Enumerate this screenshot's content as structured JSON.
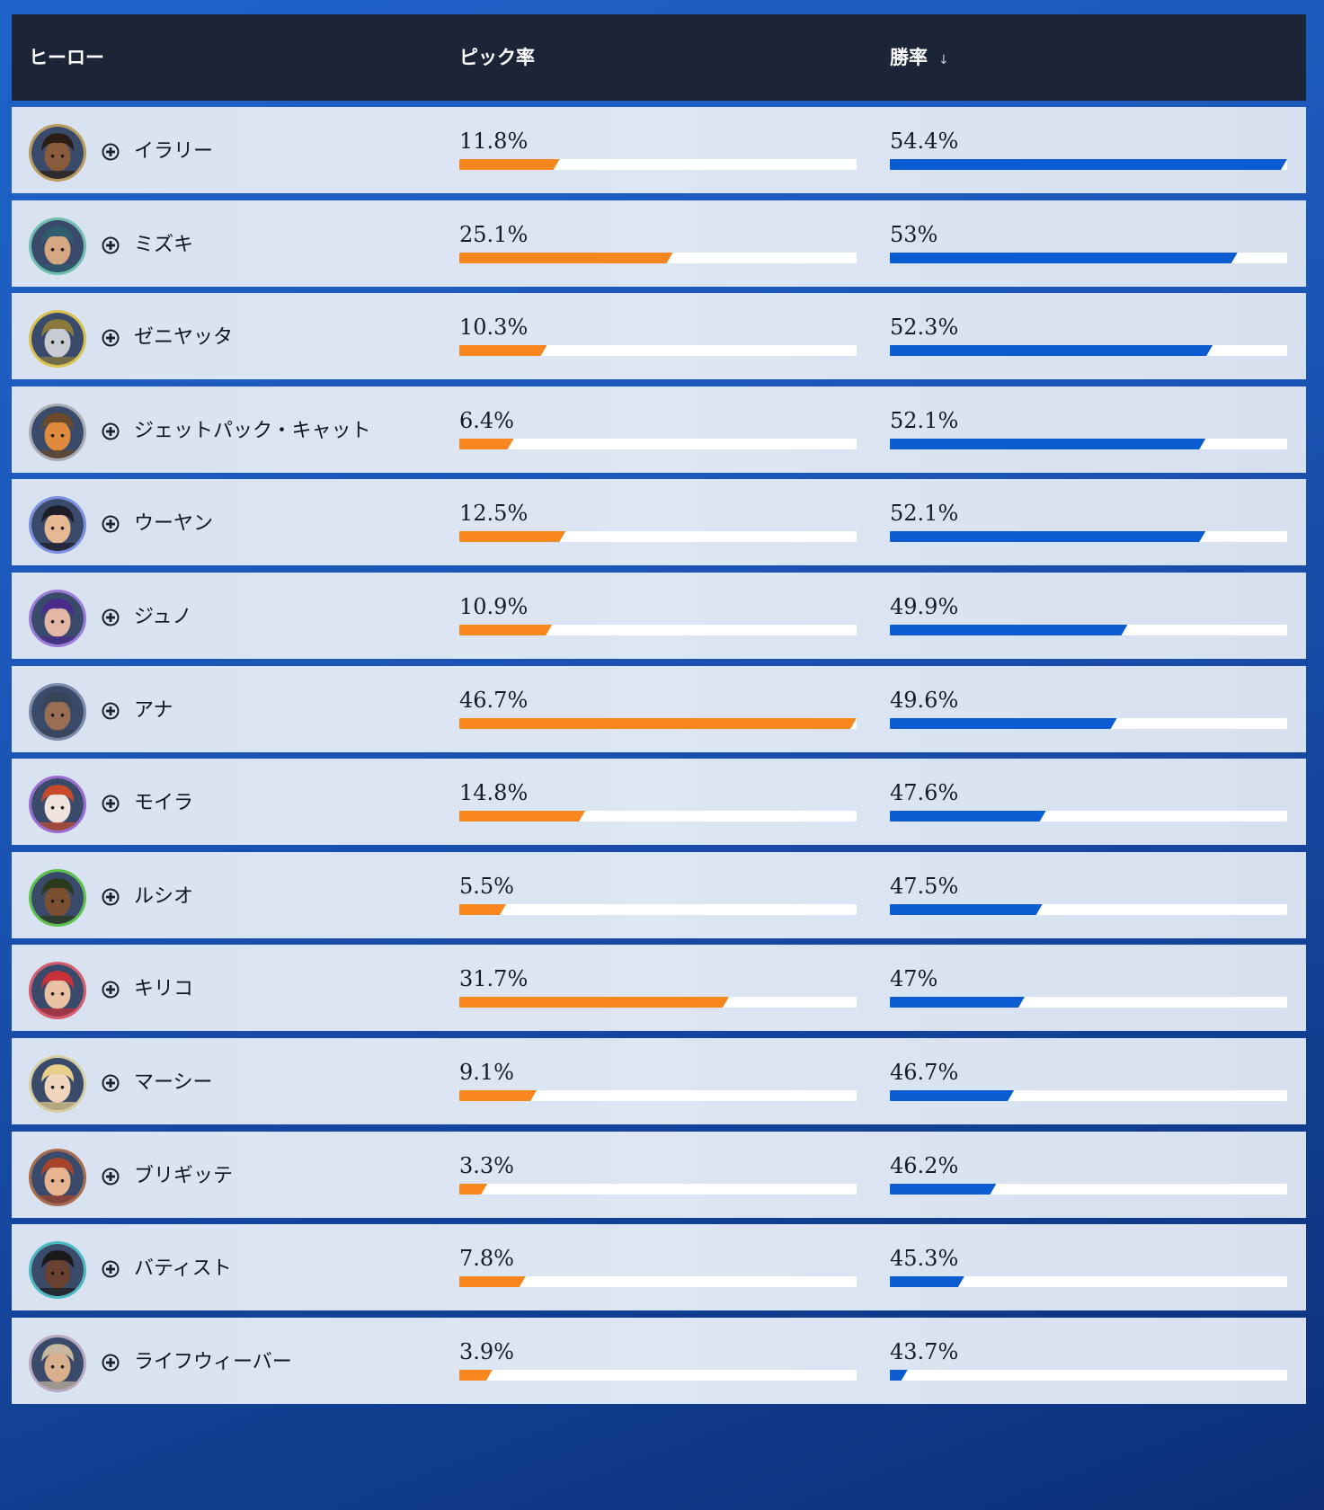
{
  "header": {
    "hero_label": "ヒーロー",
    "pick_label": "ピック率",
    "win_label": "勝率",
    "sort_icon": "↓"
  },
  "colors": {
    "pick_bar": "#f7861f",
    "win_bar": "#0b5bd1",
    "header_bg": "#1c2438"
  },
  "rows": [
    {
      "name": "イラリー",
      "pick_label": "11.8%",
      "pick": 11.8,
      "win_label": "54.4%",
      "win": 54.4,
      "ring": "#b89a5a",
      "skin": "#8a5a3c",
      "hair": "#2a1d16"
    },
    {
      "name": "ミズキ",
      "pick_label": "25.1%",
      "pick": 25.1,
      "win_label": "53%",
      "win": 53.0,
      "ring": "#6fbfb0",
      "skin": "#d6a882",
      "hair": "#2f5d6e"
    },
    {
      "name": "ゼニヤッタ",
      "pick_label": "10.3%",
      "pick": 10.3,
      "win_label": "52.3%",
      "win": 52.3,
      "ring": "#d9c24a",
      "skin": "#c9cbd2",
      "hair": "#8a7a3c"
    },
    {
      "name": "ジェットパック・キャット",
      "pick_label": "6.4%",
      "pick": 6.4,
      "win_label": "52.1%",
      "win": 52.1,
      "ring": "#a9a9b0",
      "skin": "#e08a3c",
      "hair": "#6a4a2a"
    },
    {
      "name": "ウーヤン",
      "pick_label": "12.5%",
      "pick": 12.5,
      "win_label": "52.1%",
      "win": 52.1,
      "ring": "#7a8fe0",
      "skin": "#e6b894",
      "hair": "#1d1d2a"
    },
    {
      "name": "ジュノ",
      "pick_label": "10.9%",
      "pick": 10.9,
      "win_label": "49.9%",
      "win": 49.9,
      "ring": "#9a7ad8",
      "skin": "#e4b6a6",
      "hair": "#4a2a8a"
    },
    {
      "name": "アナ",
      "pick_label": "46.7%",
      "pick": 46.7,
      "win_label": "49.6%",
      "win": 49.6,
      "ring": "#7d88a8",
      "skin": "#9a6e52",
      "hair": "#3a4458"
    },
    {
      "name": "モイラ",
      "pick_label": "14.8%",
      "pick": 14.8,
      "win_label": "47.6%",
      "win": 47.6,
      "ring": "#9a6ad0",
      "skin": "#f0e2dc",
      "hair": "#c84a2a"
    },
    {
      "name": "ルシオ",
      "pick_label": "5.5%",
      "pick": 5.5,
      "win_label": "47.5%",
      "win": 47.5,
      "ring": "#5ac24a",
      "skin": "#7a4e30",
      "hair": "#2a3a1a"
    },
    {
      "name": "キリコ",
      "pick_label": "31.7%",
      "pick": 31.7,
      "win_label": "47%",
      "win": 47.0,
      "ring": "#d85a6a",
      "skin": "#e8c0a2",
      "hair": "#c8303a"
    },
    {
      "name": "マーシー",
      "pick_label": "9.1%",
      "pick": 9.1,
      "win_label": "46.7%",
      "win": 46.7,
      "ring": "#d8cfa0",
      "skin": "#f0d6bc",
      "hair": "#e8d08a"
    },
    {
      "name": "ブリギッテ",
      "pick_label": "3.3%",
      "pick": 3.3,
      "win_label": "46.2%",
      "win": 46.2,
      "ring": "#a86a4a",
      "skin": "#e6b48e",
      "hair": "#a8442a"
    },
    {
      "name": "バティスト",
      "pick_label": "7.8%",
      "pick": 7.8,
      "win_label": "45.3%",
      "win": 45.3,
      "ring": "#4ab8c0",
      "skin": "#6a4030",
      "hair": "#1a1a1a"
    },
    {
      "name": "ライフウィーバー",
      "pick_label": "3.9%",
      "pick": 3.9,
      "win_label": "43.7%",
      "win": 43.7,
      "ring": "#b8a8c0",
      "skin": "#d8b08e",
      "hair": "#c8b8a0"
    }
  ]
}
